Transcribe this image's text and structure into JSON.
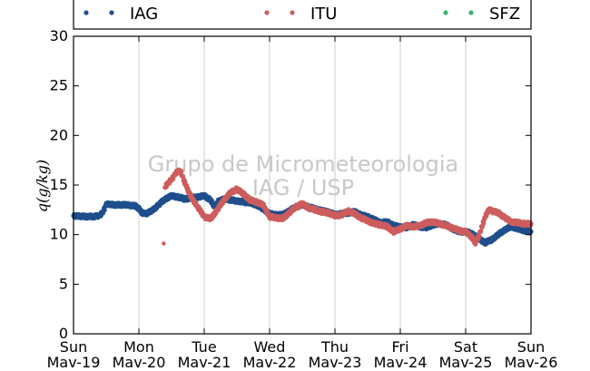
{
  "chart_data": {
    "type": "scatter",
    "title": "",
    "xlabel": "",
    "ylabel": "q(g/kg)",
    "ylim": [
      0,
      30
    ],
    "yticks": [
      0,
      5,
      10,
      15,
      20,
      25,
      30
    ],
    "xlim": [
      0,
      7
    ],
    "x_unit": "days",
    "xticks": [
      {
        "day": "Sun",
        "date": "Mav-19"
      },
      {
        "day": "Mon",
        "date": "Mav-20"
      },
      {
        "day": "Tue",
        "date": "Mav-21"
      },
      {
        "day": "Wed",
        "date": "Mav-22"
      },
      {
        "day": "Thu",
        "date": "Mav-23"
      },
      {
        "day": "Fri",
        "date": "Mav-24"
      },
      {
        "day": "Sat",
        "date": "Mav-25"
      },
      {
        "day": "Sun",
        "date": "Mav-26"
      }
    ],
    "grid": "vertical",
    "legend_position": "top",
    "watermark": [
      "Grupo de Micrometeorologia",
      "IAG / USP"
    ],
    "series": [
      {
        "name": "IAG",
        "color": "#1f4e8c",
        "x": [
          0.0,
          0.25,
          0.4,
          0.45,
          0.5,
          0.55,
          0.6,
          0.8,
          0.95,
          1.0,
          1.05,
          1.1,
          1.2,
          1.3,
          1.4,
          1.5,
          1.6,
          1.7,
          1.8,
          1.9,
          2.0,
          2.1,
          2.15,
          2.2,
          2.3,
          2.5,
          2.7,
          2.8,
          2.9,
          3.0,
          3.1,
          3.2,
          3.3,
          3.4,
          3.5,
          3.6,
          3.7,
          3.8,
          3.9,
          4.0,
          4.1,
          4.2,
          4.3,
          4.4,
          4.5,
          4.6,
          4.7,
          4.8,
          4.9,
          5.0,
          5.1,
          5.2,
          5.3,
          5.4,
          5.5,
          5.6,
          5.7,
          5.8,
          5.9,
          6.0,
          6.1,
          6.2,
          6.3,
          6.4,
          6.5,
          6.6,
          6.7,
          6.8,
          6.9,
          7.0
        ],
        "y": [
          11.9,
          11.8,
          11.9,
          12.3,
          13.0,
          13.1,
          13.0,
          13.0,
          12.9,
          12.6,
          12.2,
          12.1,
          12.4,
          13.0,
          13.6,
          13.9,
          13.8,
          13.6,
          13.7,
          13.8,
          13.9,
          13.5,
          12.8,
          13.3,
          13.6,
          13.4,
          13.2,
          13.0,
          12.6,
          12.1,
          12.0,
          12.0,
          12.4,
          12.8,
          13.0,
          12.8,
          12.6,
          12.4,
          12.3,
          12.0,
          12.1,
          12.2,
          12.3,
          12.0,
          11.8,
          11.5,
          11.2,
          11.3,
          10.9,
          10.8,
          10.7,
          11.0,
          10.8,
          10.7,
          11.0,
          11.1,
          11.0,
          10.6,
          10.3,
          10.3,
          10.1,
          9.6,
          9.2,
          9.5,
          10.0,
          10.5,
          10.8,
          10.6,
          10.4,
          10.3
        ]
      },
      {
        "name": "ITU",
        "color": "#cd5c5c",
        "x": [
          1.38,
          1.4,
          1.45,
          1.5,
          1.55,
          1.6,
          1.65,
          1.7,
          1.75,
          1.8,
          1.9,
          2.0,
          2.1,
          2.2,
          2.3,
          2.4,
          2.5,
          2.6,
          2.7,
          2.8,
          2.9,
          3.0,
          3.1,
          3.2,
          3.3,
          3.4,
          3.5,
          3.6,
          3.7,
          3.8,
          3.9,
          4.0,
          4.1,
          4.2,
          4.3,
          4.4,
          4.5,
          4.6,
          4.7,
          4.8,
          4.9,
          5.0,
          5.1,
          5.2,
          5.3,
          5.4,
          5.5,
          5.6,
          5.7,
          5.8,
          5.9,
          6.0,
          6.1,
          6.15,
          6.2,
          6.3,
          6.35,
          6.4,
          6.5,
          6.6,
          6.7,
          6.8,
          6.9,
          7.0
        ],
        "y": [
          9.1,
          14.8,
          15.2,
          15.6,
          16.0,
          16.5,
          16.2,
          15.3,
          14.5,
          13.8,
          12.8,
          11.8,
          11.6,
          12.5,
          13.5,
          14.2,
          14.6,
          14.1,
          13.5,
          13.3,
          13.0,
          11.8,
          11.7,
          11.6,
          12.2,
          12.8,
          13.1,
          12.7,
          12.5,
          12.3,
          12.2,
          11.9,
          12.0,
          12.4,
          12.1,
          11.7,
          11.4,
          11.1,
          11.0,
          10.8,
          10.3,
          10.6,
          10.9,
          10.8,
          10.9,
          11.2,
          11.3,
          11.1,
          10.9,
          10.7,
          10.4,
          10.3,
          9.7,
          9.2,
          9.8,
          11.8,
          12.5,
          12.4,
          12.2,
          11.7,
          11.3,
          11.2,
          11.1,
          11.1
        ]
      },
      {
        "name": "SFZ",
        "color": "#3cb371",
        "x": [],
        "y": []
      }
    ]
  }
}
